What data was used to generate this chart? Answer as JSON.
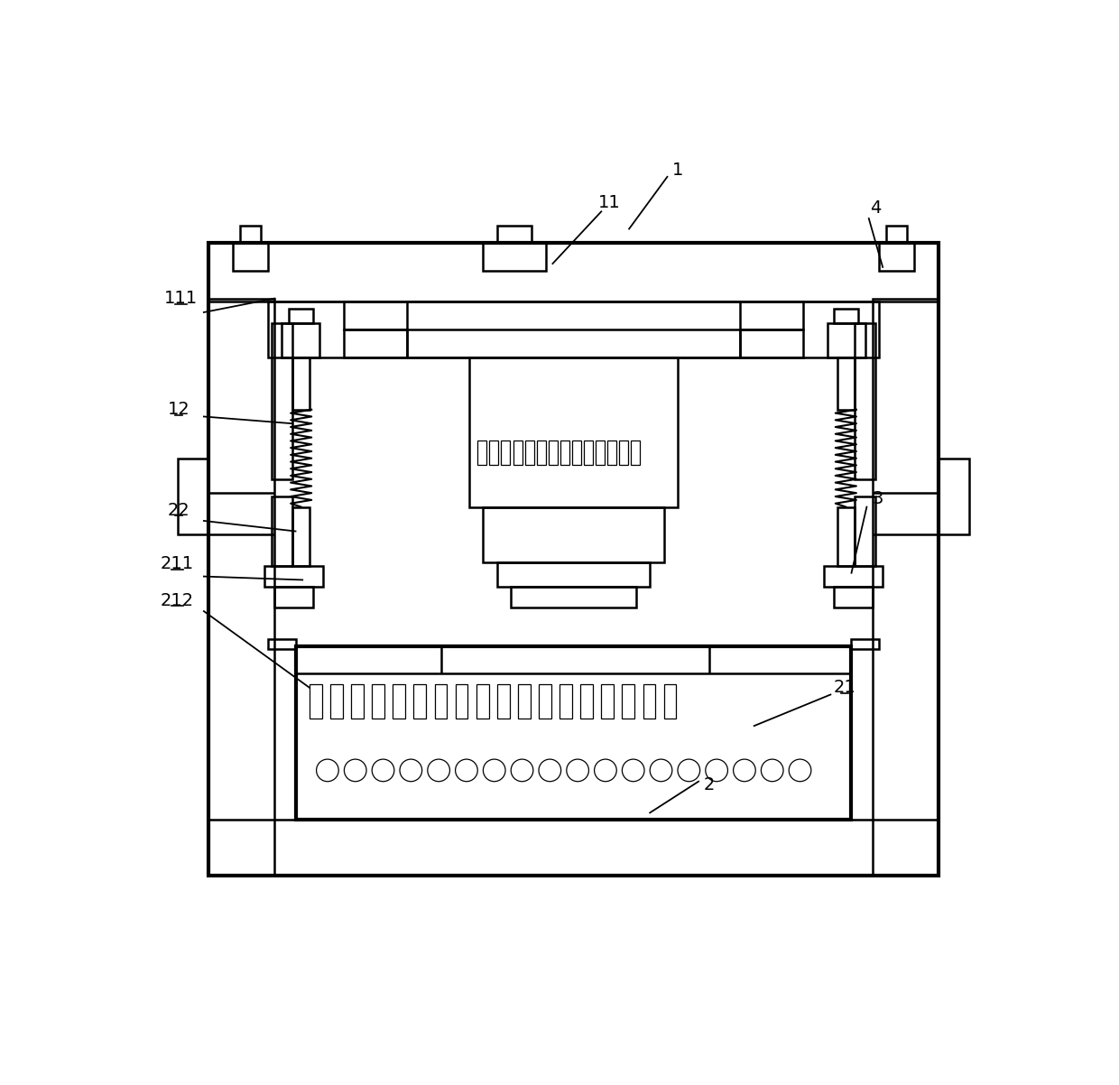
{
  "bg": "#ffffff",
  "lc": "#000000",
  "lw": 1.8,
  "tlw": 3.0,
  "fs": 14,
  "ul_lw": 1.2
}
